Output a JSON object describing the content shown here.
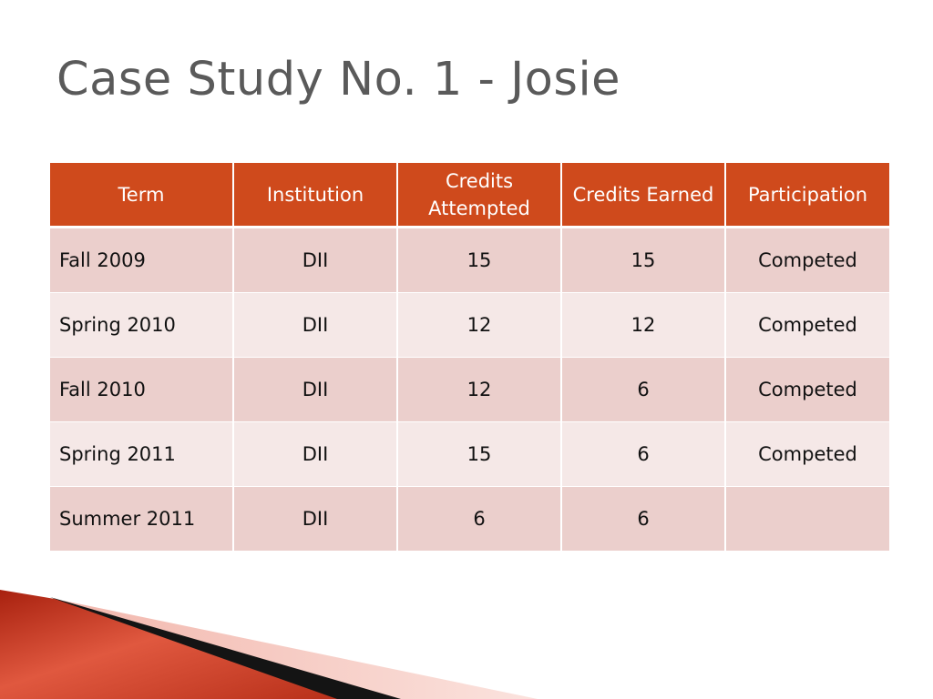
{
  "slide": {
    "title": "Case Study No. 1 - Josie"
  },
  "table": {
    "headers": [
      "Term",
      "Institution",
      "Credits Attempted",
      "Credits Earned",
      "Participation"
    ],
    "rows": [
      [
        "Fall 2009",
        "DII",
        "15",
        "15",
        "Competed"
      ],
      [
        "Spring 2010",
        "DII",
        "12",
        "12",
        "Competed"
      ],
      [
        "Fall 2010",
        "DII",
        "12",
        "6",
        "Competed"
      ],
      [
        "Spring 2011",
        "DII",
        "15",
        "6",
        "Competed"
      ],
      [
        "Summer 2011",
        "DII",
        "6",
        "6",
        ""
      ]
    ]
  },
  "colors": {
    "header_bg": "#cf4a1c",
    "row_dark": "#ebcfcc",
    "row_light": "#f5e8e7",
    "title": "#5a5a5a",
    "accent": "#c0392b"
  }
}
